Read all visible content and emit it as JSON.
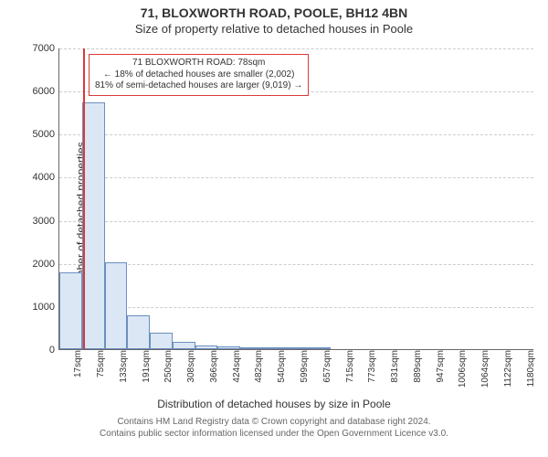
{
  "title_line1": "71, BLOXWORTH ROAD, POOLE, BH12 4BN",
  "title_line2": "Size of property relative to detached houses in Poole",
  "chart": {
    "type": "histogram",
    "ylabel": "Number of detached properties",
    "xlabel": "Distribution of detached houses by size in Poole",
    "ylim": [
      0,
      7000
    ],
    "ytick_step": 1000,
    "yticks": [
      0,
      1000,
      2000,
      3000,
      4000,
      5000,
      6000,
      7000
    ],
    "xtick_labels": [
      "17sqm",
      "75sqm",
      "133sqm",
      "191sqm",
      "250sqm",
      "308sqm",
      "366sqm",
      "424sqm",
      "482sqm",
      "540sqm",
      "599sqm",
      "657sqm",
      "715sqm",
      "773sqm",
      "831sqm",
      "889sqm",
      "947sqm",
      "1006sqm",
      "1064sqm",
      "1122sqm",
      "1180sqm"
    ],
    "bar_values": [
      1780,
      5730,
      2010,
      790,
      390,
      170,
      80,
      70,
      40,
      40,
      30,
      30,
      0,
      0,
      0,
      0,
      0,
      0,
      0,
      0,
      0
    ],
    "bar_fill": "#dbe7f5",
    "bar_border": "#6b8fbf",
    "grid_color": "#cccccc",
    "background": "#ffffff",
    "marker": {
      "bin_index": 1,
      "position_in_bin": 0.05,
      "color": "#d93a3a"
    },
    "annotation": {
      "border_color": "#d93a3a",
      "lines": [
        "71 BLOXWORTH ROAD: 78sqm",
        "← 18% of detached houses are smaller (2,002)",
        "81% of semi-detached houses are larger (9,019) →"
      ]
    }
  },
  "footer_line1": "Contains HM Land Registry data © Crown copyright and database right 2024.",
  "footer_line2": "Contains public sector information licensed under the Open Government Licence v3.0."
}
